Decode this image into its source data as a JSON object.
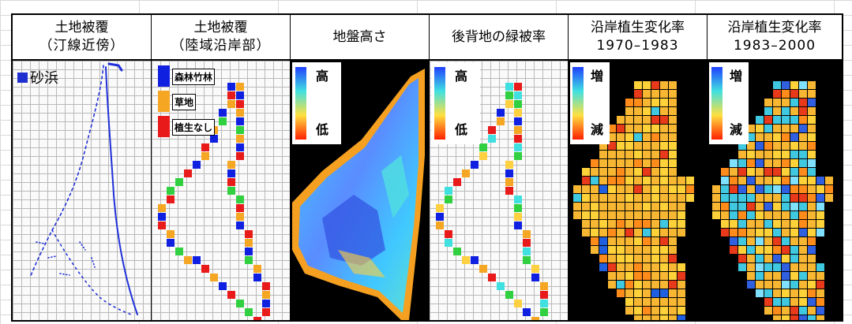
{
  "columns": [
    {
      "title_line1": "土地被覆",
      "title_line2": "（汀線近傍）"
    },
    {
      "title_line1": "土地被覆",
      "title_line2": "（陸域沿岸部）"
    },
    {
      "title_line1": "地盤高さ",
      "title_line2": ""
    },
    {
      "title_line1": "後背地の緑被率",
      "title_line2": ""
    },
    {
      "title_line1": "沿岸植生変化率",
      "title_line2": "1970–1983"
    },
    {
      "title_line1": "沿岸植生変化率",
      "title_line2": "1983–2000"
    }
  ],
  "panel1": {
    "legend_label": "砂浜",
    "legend_color": "#1f2fd0"
  },
  "panel2": {
    "categories": [
      {
        "label": "森林竹林",
        "color": "#1020e0"
      },
      {
        "label": "草地",
        "color": "#f5a623"
      },
      {
        "label": "植生なし",
        "color": "#e81a1a"
      }
    ]
  },
  "panel3": {
    "legend_high": "高",
    "legend_low": "低"
  },
  "panel4": {
    "legend_high": "高",
    "legend_low": "低"
  },
  "panel5": {
    "legend_high": "増",
    "legend_low": "減"
  },
  "panel6": {
    "legend_high": "増",
    "legend_low": "減"
  },
  "colors": {
    "jet_high": "#2040ff",
    "jet_mid": "#40e0e0",
    "jet_low": "#ff2000",
    "orange_fill": "#f7b733",
    "yellow_fill": "#ffd23a"
  }
}
